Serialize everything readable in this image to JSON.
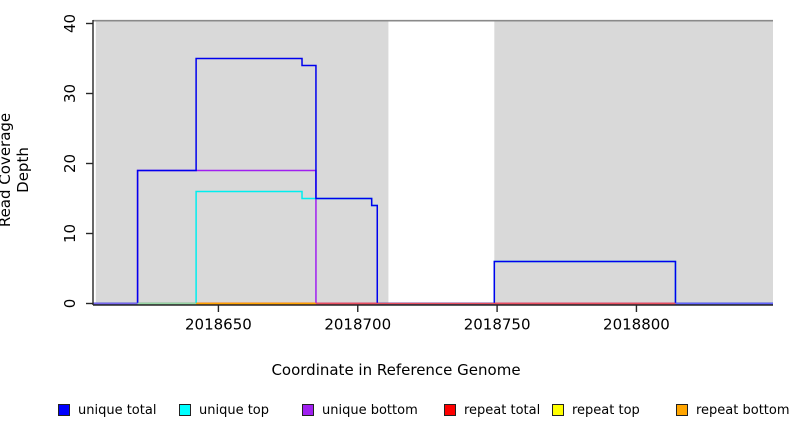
{
  "figure": {
    "xlabel": "Coordinate in Reference Genome",
    "ylabel": "Read Coverage Depth"
  },
  "legend": {
    "items": [
      {
        "label": "unique total",
        "color": "#0000ff"
      },
      {
        "label": "unique top",
        "color": "#00ffff"
      },
      {
        "label": "unique bottom",
        "color": "#a020f0"
      },
      {
        "label": "repeat total",
        "color": "#ff0000"
      },
      {
        "label": "repeat top",
        "color": "#ffff00"
      },
      {
        "label": "repeat bottom",
        "color": "#ffa500"
      }
    ]
  },
  "chart_data": {
    "type": "line",
    "subtype": "step",
    "title": "",
    "xlabel": "Coordinate in Reference Genome",
    "ylabel": "Read Coverage Depth",
    "xlim": [
      2018605,
      2018849
    ],
    "ylim": [
      0,
      40
    ],
    "x_ticks": [
      2018650,
      2018700,
      2018750,
      2018800
    ],
    "y_ticks": [
      0,
      10,
      20,
      30,
      40
    ],
    "grid": false,
    "legend_position": "bottom",
    "plot_bg": "#ffffff",
    "shaded_color": "#d9d9d9",
    "top_border_color": "#8a8a8a",
    "axis_color": "#262626",
    "shaded_regions": [
      {
        "from": 2018606,
        "to": 2018711
      },
      {
        "from": 2018749,
        "to": 2018849
      }
    ],
    "series": [
      {
        "name": "unique total",
        "color": "#0000ee",
        "steps": [
          [
            2018605,
            0
          ],
          [
            2018621,
            19
          ],
          [
            2018642,
            35
          ],
          [
            2018680,
            34
          ],
          [
            2018685,
            15
          ],
          [
            2018705,
            14
          ],
          [
            2018707,
            0
          ],
          [
            2018749,
            6
          ],
          [
            2018814,
            0
          ],
          [
            2018849,
            0
          ]
        ]
      },
      {
        "name": "unique top",
        "color": "#00eeee",
        "steps": [
          [
            2018605,
            0
          ],
          [
            2018642,
            16
          ],
          [
            2018680,
            15
          ],
          [
            2018705,
            14
          ],
          [
            2018707,
            0
          ],
          [
            2018749,
            6
          ],
          [
            2018814,
            0
          ],
          [
            2018849,
            0
          ]
        ]
      },
      {
        "name": "unique bottom",
        "color": "#a020f0",
        "steps": [
          [
            2018605,
            0
          ],
          [
            2018621,
            19
          ],
          [
            2018685,
            0
          ],
          [
            2018849,
            0
          ]
        ]
      },
      {
        "name": "repeat total",
        "color": "#ff0000",
        "steps": [
          [
            2018605,
            0
          ],
          [
            2018849,
            0
          ]
        ]
      },
      {
        "name": "repeat top",
        "color": "#ffff00",
        "steps": [
          [
            2018605,
            0
          ],
          [
            2018849,
            0
          ]
        ]
      },
      {
        "name": "repeat bottom",
        "color": "#ffa500",
        "steps": [
          [
            2018605,
            0
          ],
          [
            2018849,
            0
          ]
        ]
      }
    ],
    "draw_order": [
      4,
      5,
      3,
      2,
      1,
      0
    ],
    "baseline_overlap_segments": [
      {
        "from": 2018605,
        "to": 2018621,
        "color": "#7b68ee"
      },
      {
        "from": 2018621,
        "to": 2018642,
        "color": "#98d7a5"
      },
      {
        "from": 2018642,
        "to": 2018685,
        "color": "#ffa500"
      },
      {
        "from": 2018685,
        "to": 2018814,
        "color": "#e8505f"
      },
      {
        "from": 2018814,
        "to": 2018849,
        "color": "#6666ff"
      }
    ]
  }
}
